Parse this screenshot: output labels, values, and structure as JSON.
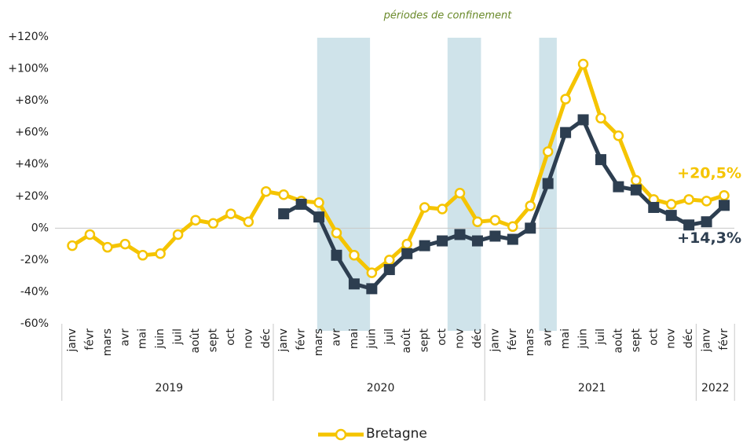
{
  "chart_data": {
    "type": "line",
    "annotation": "périodes de confinement",
    "categories": [
      "janv",
      "févr",
      "mars",
      "avr",
      "mai",
      "juin",
      "juil",
      "août",
      "sept",
      "oct",
      "nov",
      "déc",
      "janv",
      "févr",
      "mars",
      "avr",
      "mai",
      "juin",
      "juil",
      "août",
      "sept",
      "oct",
      "nov",
      "déc",
      "janv",
      "févr",
      "mars",
      "avr",
      "mai",
      "juin",
      "juil",
      "août",
      "sept",
      "oct",
      "nov",
      "déc",
      "janv",
      "févr"
    ],
    "years": [
      "2019",
      "2020",
      "2021",
      "2022"
    ],
    "series": [
      {
        "name": "Bretagne",
        "color": "#f5c400",
        "values": [
          -11,
          -4,
          -12,
          -10,
          -17,
          -16,
          -4,
          5,
          3,
          9,
          4,
          23,
          21,
          17,
          16,
          -3,
          -17,
          -28,
          -20,
          -10,
          13,
          12,
          22,
          4,
          5,
          1,
          14,
          48,
          81,
          103,
          69,
          58,
          30,
          18,
          15,
          18,
          17,
          20.5
        ],
        "value_labels": [
          null,
          null,
          null,
          null,
          null,
          null,
          null,
          null,
          null,
          null,
          null,
          null,
          null,
          null,
          null,
          null,
          null,
          null,
          null,
          null,
          null,
          null,
          null,
          null,
          null,
          null,
          null,
          null,
          null,
          null,
          null,
          null,
          null,
          null,
          null,
          null,
          null,
          "+20,5%"
        ]
      },
      {
        "color": "#2d3e50",
        "values": [
          null,
          null,
          null,
          null,
          null,
          null,
          null,
          null,
          null,
          null,
          null,
          null,
          9,
          15,
          7,
          -17,
          -35,
          -38,
          -26,
          -16,
          -11,
          -8,
          -4,
          -8,
          -5,
          -7,
          0,
          28,
          60,
          68,
          43,
          26,
          24,
          13,
          8,
          2,
          4,
          14.3
        ],
        "value_labels": [
          null,
          null,
          null,
          null,
          null,
          null,
          null,
          null,
          null,
          null,
          null,
          null,
          null,
          null,
          null,
          null,
          null,
          null,
          null,
          null,
          null,
          null,
          null,
          null,
          null,
          null,
          null,
          null,
          null,
          null,
          null,
          null,
          null,
          null,
          null,
          null,
          null,
          "+14,3%"
        ]
      }
    ],
    "ylim": [
      -60,
      120
    ],
    "yticks": [
      {
        "value": -60,
        "label": "-60%"
      },
      {
        "value": -40,
        "label": "-40%"
      },
      {
        "value": -20,
        "label": "-20%"
      },
      {
        "value": 0,
        "label": "0%"
      },
      {
        "value": 20,
        "label": "+20%"
      },
      {
        "value": 40,
        "label": "+40%"
      },
      {
        "value": 60,
        "label": "+60%"
      },
      {
        "value": 80,
        "label": "+80%"
      },
      {
        "value": 100,
        "label": "+100%"
      },
      {
        "value": 120,
        "label": "+120%"
      }
    ]
  }
}
